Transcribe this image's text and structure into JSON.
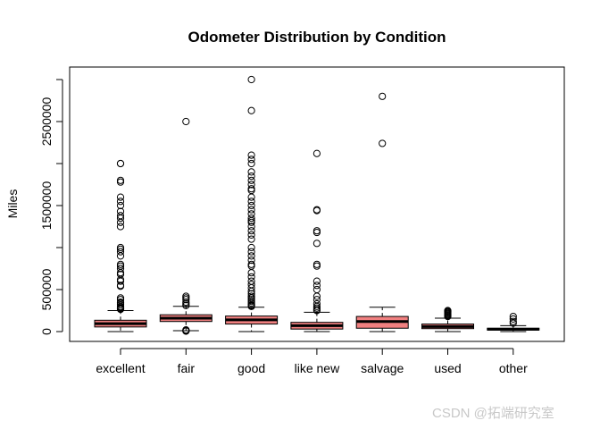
{
  "chart_data": {
    "type": "box",
    "title": "Odometer Distribution by Condition",
    "xlabel": "",
    "ylabel": "Miles",
    "categories": [
      "excellent",
      "fair",
      "good",
      "like new",
      "salvage",
      "used",
      "other"
    ],
    "yticks": [
      0,
      500000,
      1500000,
      2500000
    ],
    "ylim": [
      -100000,
      3100000
    ],
    "box_color": "#f08080",
    "boxes": [
      {
        "name": "excellent",
        "whisker_low": 0,
        "q1": 55000,
        "median": 95000,
        "q3": 135000,
        "whisker_high": 250000,
        "outliers": [
          2000000,
          2000000,
          1800000,
          1780000,
          1600000,
          1550000,
          1500000,
          1430000,
          1380000,
          1350000,
          1300000,
          1250000,
          1000000,
          980000,
          950000,
          900000,
          800000,
          780000,
          750000,
          700000,
          680000,
          620000,
          600000,
          550000,
          540000,
          400000,
          380000,
          350000,
          340000,
          320000,
          300000,
          290000,
          280000,
          275000,
          270000,
          265000
        ]
      },
      {
        "name": "fair",
        "whisker_low": 10000,
        "q1": 120000,
        "median": 160000,
        "q3": 200000,
        "whisker_high": 300000,
        "outliers": [
          2500000,
          420000,
          400000,
          380000,
          350000,
          330000,
          310000,
          20000,
          15000,
          10000,
          5000
        ]
      },
      {
        "name": "good",
        "whisker_low": 0,
        "q1": 90000,
        "median": 140000,
        "q3": 185000,
        "whisker_high": 290000,
        "outliers": [
          3000000,
          2630000,
          2100000,
          2050000,
          2000000,
          1900000,
          1850000,
          1800000,
          1750000,
          1700000,
          1680000,
          1600000,
          1550000,
          1500000,
          1450000,
          1400000,
          1350000,
          1320000,
          1300000,
          1250000,
          1200000,
          1150000,
          1100000,
          1000000,
          950000,
          900000,
          850000,
          800000,
          780000,
          700000,
          650000,
          600000,
          560000,
          520000,
          480000,
          450000,
          420000,
          400000,
          380000,
          360000,
          340000,
          320000,
          310000,
          300000
        ]
      },
      {
        "name": "like new",
        "whisker_low": 0,
        "q1": 30000,
        "median": 70000,
        "q3": 110000,
        "whisker_high": 230000,
        "outliers": [
          2120000,
          1450000,
          1440000,
          1200000,
          1180000,
          1050000,
          800000,
          780000,
          600000,
          550000,
          500000,
          420000,
          380000,
          330000,
          300000,
          280000,
          260000,
          250000
        ]
      },
      {
        "name": "salvage",
        "whisker_low": 0,
        "q1": 40000,
        "median": 120000,
        "q3": 180000,
        "whisker_high": 290000,
        "outliers": [
          2800000,
          2240000
        ]
      },
      {
        "name": "used",
        "whisker_low": 0,
        "q1": 35000,
        "median": 60000,
        "q3": 90000,
        "whisker_high": 160000,
        "outliers": [
          250000,
          240000,
          230000,
          220000,
          210000,
          200000,
          190000,
          180000
        ]
      },
      {
        "name": "other",
        "whisker_low": 0,
        "q1": 18000,
        "median": 28000,
        "q3": 40000,
        "whisker_high": 70000,
        "outliers": [
          180000,
          150000,
          120000,
          100000
        ]
      }
    ],
    "grid": false,
    "legend": "none"
  },
  "watermark": "CSDN @拓端研究室"
}
